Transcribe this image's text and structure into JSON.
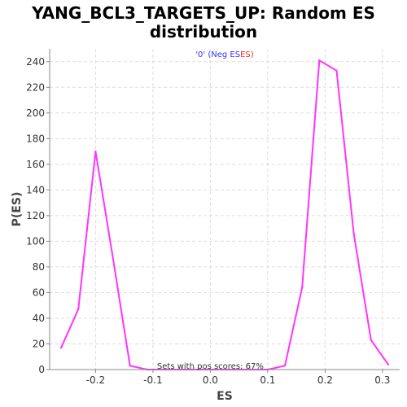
{
  "chart_data": {
    "type": "line",
    "title_line1": "YANG_BCL3_TARGETS_UP: Random ES",
    "title_line2": "distribution",
    "xlabel": "ES",
    "ylabel": "P(ES)",
    "xlim": [
      -0.28,
      0.33
    ],
    "ylim": [
      0,
      250
    ],
    "x_ticks": [
      -0.2,
      -0.1,
      0.0,
      0.1,
      0.2,
      0.3
    ],
    "x_tick_labels": [
      "-0.2",
      "-0.1",
      "0.0",
      "0.1",
      "0.2",
      "0.3"
    ],
    "y_ticks": [
      0,
      20,
      40,
      60,
      80,
      100,
      120,
      140,
      160,
      180,
      200,
      220,
      240
    ],
    "y_tick_labels": [
      "0",
      "20",
      "40",
      "60",
      "80",
      "100",
      "120",
      "140",
      "160",
      "180",
      "200",
      "220",
      "240"
    ],
    "grid": true,
    "legend": {
      "placement": "top-center",
      "prefix": "'0' (",
      "neg_label": "Neg ES",
      "pos_label": "ES",
      "suffix": ")",
      "neg_color": "#3333ff",
      "pos_color": "#ff2222"
    },
    "annotation": "Sets with pos scores: 67%",
    "series": [
      {
        "color": "#ff33ff",
        "x": [
          -0.26,
          -0.23,
          -0.2,
          -0.17,
          -0.14,
          -0.11,
          -0.08,
          -0.05,
          -0.02,
          0.01,
          0.04,
          0.07,
          0.1,
          0.13,
          0.16,
          0.19,
          0.22,
          0.25,
          0.28,
          0.31
        ],
        "y": [
          17,
          47,
          170,
          88,
          3,
          0,
          0,
          0,
          0,
          0,
          0,
          0,
          0,
          3,
          64,
          241,
          233,
          106,
          23,
          4
        ]
      }
    ]
  }
}
